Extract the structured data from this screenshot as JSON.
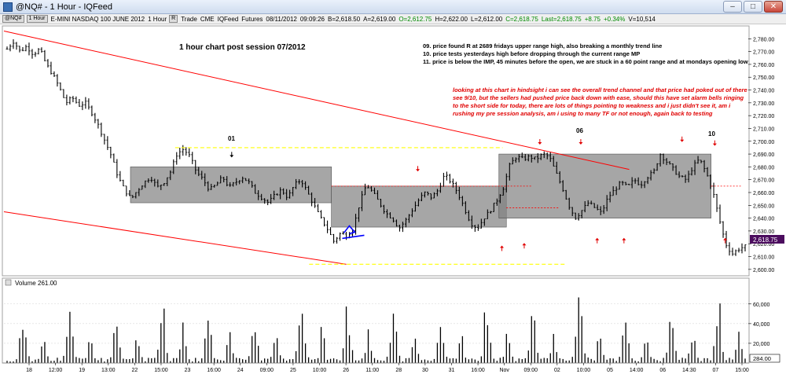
{
  "window": {
    "title": "@NQ# - 1 Hour - IQFeed",
    "controls": [
      "–",
      "□",
      "✕"
    ]
  },
  "info_bar": {
    "symbol": "@NQ#",
    "interval": "1 Hour",
    "description": "E-MINI NASDAQ 100 JUNE 2012",
    "interval_short": "1 Hour",
    "toggle": "R",
    "trade": "Trade",
    "exchange": "CME",
    "feed": "IQFeed",
    "market": "Futures",
    "date": "08/11/2012",
    "time": "09:09:26",
    "bid": "B=2,618.50",
    "ask": "A=2,619.00",
    "open": "O=2,612.75",
    "high": "H=2,622.00",
    "low": "L=2,612.00",
    "close": "C=2,618.75",
    "last": "Last=2,618.75",
    "change": "+8.75",
    "change_pct": "+0.34%",
    "volume": "V=10,514"
  },
  "annotations": {
    "chart_title": "1 hour chart post session 07/2012",
    "notes_black": [
      "09. price found R at 2689 fridays upper range high, also breaking a monthly trend line",
      "10. price tests yesterdays high before dropping through the current range MP",
      "11. price is below the IMP, 45 minutes before the open, we are stuck in a 60 point range and at mondays opening low"
    ],
    "notes_red": [
      "looking at this chart in hindsight i can see the overall trend channel and that price had poked out of there",
      "see 9/10, but the sellers had pushed price back down with ease, should this have set alarm bells ringing",
      "to the short side for today, there are lots of things pointing to weakness and i just didn't see it, am i",
      "rushing my pre session analysis, am i using to many TF or not enough, again back to testing"
    ],
    "marker_labels": [
      "01",
      "06",
      "10"
    ]
  },
  "volume_panel": {
    "label": "Volume",
    "value": "261.00",
    "last_box": "284.00"
  },
  "last_price_box": "2,618.75",
  "colors": {
    "bars": "#000000",
    "trend_line": "#ff0000",
    "range_box": "#808080",
    "yellow_dash": "#ffff00",
    "red_dash": "#ff0000",
    "blue_pattern": "#0000ff",
    "price_box": "#4b0082"
  },
  "chart_data": [
    {
      "type": "ohlc",
      "title": "1 hour chart post session 07/2012",
      "ylim": [
        2595,
        2790
      ],
      "yticks": [
        2600,
        2610,
        2620,
        2630,
        2640,
        2650,
        2660,
        2670,
        2680,
        2690,
        2700,
        2710,
        2720,
        2730,
        2740,
        2750,
        2760,
        2770,
        2780
      ],
      "ytick_labels": [
        "2,600.00",
        "2,610.00",
        "2,620.00",
        "2,630.00",
        "2,640.00",
        "2,650.00",
        "2,660.00",
        "2,670.00",
        "2,680.00",
        "2,690.00",
        "2,700.00",
        "2,710.00",
        "2,720.00",
        "2,730.00",
        "2,740.00",
        "2,750.00",
        "2,760.00",
        "2,770.00",
        "2,780.00"
      ],
      "xtick_labels": [
        "18",
        "12:00",
        "19",
        "13:00",
        "22",
        "15:00",
        "23",
        "16:00",
        "24",
        "09:00",
        "25",
        "10:00",
        "26",
        "11:00",
        "28",
        "30",
        "31",
        "16:00",
        "Nov",
        "09:00",
        "02",
        "10:00",
        "05",
        "14:00",
        "06",
        "14:30",
        "07",
        "15:00"
      ],
      "close_path": [
        2772,
        2778,
        2770,
        2774,
        2768,
        2772,
        2760,
        2752,
        2742,
        2730,
        2734,
        2728,
        2730,
        2722,
        2712,
        2700,
        2688,
        2672,
        2662,
        2655,
        2662,
        2668,
        2672,
        2664,
        2668,
        2676,
        2690,
        2694,
        2688,
        2676,
        2670,
        2662,
        2666,
        2672,
        2664,
        2668,
        2672,
        2668,
        2660,
        2656,
        2652,
        2658,
        2662,
        2656,
        2666,
        2670,
        2660,
        2650,
        2640,
        2632,
        2622,
        2628,
        2626,
        2632,
        2652,
        2666,
        2660,
        2652,
        2644,
        2640,
        2632,
        2638,
        2646,
        2654,
        2660,
        2656,
        2662,
        2674,
        2668,
        2660,
        2648,
        2636,
        2632,
        2640,
        2646,
        2654,
        2664,
        2682,
        2688,
        2686,
        2688,
        2686,
        2690,
        2688,
        2676,
        2664,
        2650,
        2640,
        2646,
        2652,
        2648,
        2644,
        2656,
        2662,
        2668,
        2664,
        2670,
        2666,
        2672,
        2676,
        2690,
        2684,
        2678,
        2672,
        2670,
        2680,
        2686,
        2676,
        2662,
        2640,
        2620,
        2612,
        2616,
        2618
      ],
      "trend_lines": [
        {
          "name": "upper-channel",
          "from": [
            0,
            2786
          ],
          "to": [
            0.84,
            2678
          ]
        },
        {
          "name": "lower-channel",
          "from": [
            0,
            2645
          ],
          "to": [
            0.46,
            2604
          ]
        }
      ],
      "range_boxes": [
        {
          "from": 0.17,
          "to": 0.44,
          "low": 2652,
          "high": 2680
        },
        {
          "from": 0.44,
          "to": 0.675,
          "low": 2633,
          "high": 2665
        },
        {
          "from": 0.665,
          "to": 0.95,
          "low": 2640,
          "high": 2690
        }
      ],
      "yellow_levels": [
        {
          "price": 2695,
          "from": 0.23,
          "to": 0.67
        },
        {
          "price": 2604,
          "from": 0.41,
          "to": 0.755
        }
      ]
    },
    {
      "type": "bar",
      "title": "Volume",
      "ylim": [
        0,
        75000
      ],
      "yticks": [
        20000,
        40000,
        60000
      ],
      "ytick_labels": [
        "20,000",
        "40,000",
        "60,000"
      ],
      "session_peaks": [
        52000,
        56000,
        44000,
        62000,
        58000,
        46000,
        66000,
        54000,
        60000,
        48000,
        64000,
        50000,
        68000,
        58000,
        62000,
        70000
      ]
    }
  ]
}
